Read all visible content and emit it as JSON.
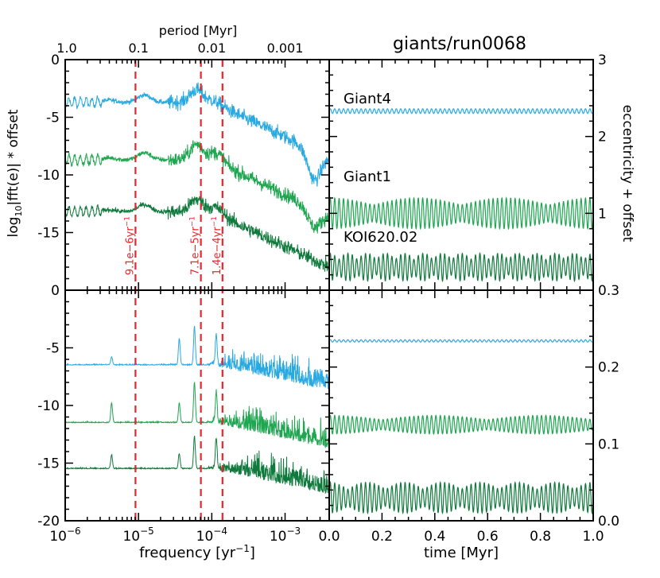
{
  "chart_data": [
    {
      "panel": "top-left",
      "type": "line",
      "xscale": "log",
      "xlim": [
        1e-06,
        0.004
      ],
      "ylim": [
        -20,
        0
      ],
      "ylabel_parts": {
        "pre": "log",
        "sub": "10",
        "post": "|fft(e)| * offset"
      },
      "yticks": [
        0,
        -5,
        -10,
        -15
      ],
      "top_axis": {
        "label": "period [Myr]",
        "ticks": [
          {
            "label": "1.0",
            "freq": 1e-06
          },
          {
            "label": "0.1",
            "freq": 1e-05
          },
          {
            "label": "0.01",
            "freq": 0.0001
          },
          {
            "label": "0.001",
            "freq": 0.001
          }
        ]
      },
      "series": [
        {
          "ref": "giant4",
          "baseline": -3.7,
          "peaks": [
            [
              4e-06,
              -3.5
            ],
            [
              1.2e-05,
              -3.0
            ],
            [
              6.2e-05,
              -2.5
            ],
            [
              0.00012,
              -3.5
            ],
            [
              0.0025,
              -6.5
            ]
          ]
        },
        {
          "ref": "giant1",
          "baseline": -8.7,
          "peaks": [
            [
              4e-06,
              -8.5
            ],
            [
              1.2e-05,
              -8.0
            ],
            [
              6.2e-05,
              -7.2
            ],
            [
              0.00012,
              -7.8
            ],
            [
              0.0025,
              -10.5
            ]
          ]
        },
        {
          "ref": "koi",
          "baseline": -13.2,
          "peaks": [
            [
              4e-06,
              -13.0
            ],
            [
              1.2e-05,
              -12.5
            ],
            [
              6.2e-05,
              -12.0
            ],
            [
              0.00012,
              -12.6
            ]
          ]
        }
      ],
      "vlines": [
        {
          "freq": 9.1e-06,
          "base": "9.1e−6yr",
          "sup": "−1"
        },
        {
          "freq": 7.1e-05,
          "base": "7.1e−5yr",
          "sup": "−1"
        },
        {
          "freq": 0.00014,
          "base": "1.4e−4yr",
          "sup": "−1"
        }
      ]
    },
    {
      "panel": "bottom-left",
      "type": "line",
      "xscale": "log",
      "xlim": [
        1e-06,
        0.004
      ],
      "ylim": [
        -20,
        0
      ],
      "xlabel": "frequency [yr",
      "xlabel_sup": "−1",
      "xlabel_end": "]",
      "xticks": [
        {
          "mant": "10",
          "exp": "−6"
        },
        {
          "mant": "10",
          "exp": "−5"
        },
        {
          "mant": "10",
          "exp": "−4"
        },
        {
          "mant": "10",
          "exp": "−3"
        }
      ],
      "yticks": [
        0,
        -5,
        -10,
        -15,
        -20
      ],
      "series": [
        {
          "ref": "giant4",
          "baseline": -6.5,
          "peaks": [
            [
              4.3e-06,
              -5.8
            ],
            [
              3.6e-05,
              -4.2
            ],
            [
              5.8e-05,
              -3.2
            ],
            [
              0.000115,
              -3.8
            ]
          ]
        },
        {
          "ref": "giant1",
          "baseline": -11.5,
          "peaks": [
            [
              4.3e-06,
              -9.8
            ],
            [
              3.6e-05,
              -9.8
            ],
            [
              5.8e-05,
              -8.0
            ],
            [
              0.000115,
              -8.8
            ]
          ]
        },
        {
          "ref": "koi",
          "baseline": -15.5,
          "peaks": [
            [
              4.3e-06,
              -14.3
            ],
            [
              3.6e-05,
              -14.2
            ],
            [
              5.8e-05,
              -12.7
            ],
            [
              0.000115,
              -12.8
            ]
          ]
        }
      ]
    },
    {
      "panel": "top-right",
      "type": "line",
      "title": "giants/run0068",
      "xlim": [
        0,
        1
      ],
      "ylim": [
        0,
        3
      ],
      "ylabel": "eccentricity + offset",
      "yticks": [
        1,
        2,
        3
      ],
      "series": [
        {
          "name": "Giant4",
          "mean": 2.33,
          "amp": 0.03,
          "freq_per_myr": 60
        },
        {
          "name": "Giant1",
          "mean": 1.0,
          "amp": 0.2,
          "freq_per_myr": 60,
          "beat_per_myr": 3
        },
        {
          "name": "KOI620.02",
          "mean": 0.3,
          "amp": 0.18,
          "freq_per_myr": 60,
          "beat_per_myr": 14
        }
      ]
    },
    {
      "panel": "bottom-right",
      "type": "line",
      "xlim": [
        0,
        1
      ],
      "ylim": [
        0,
        0.3
      ],
      "xlabel": "time [Myr]",
      "xticks": [
        "0.0",
        "0.2",
        "0.4",
        "0.6",
        "0.8",
        "1.0"
      ],
      "yticks": [
        "0.0",
        "0.1",
        "0.2",
        "0.3"
      ],
      "series": [
        {
          "ref": "giant4",
          "mean": 0.234,
          "amp": 0.0015,
          "freq_per_myr": 60
        },
        {
          "ref": "giant1",
          "mean": 0.125,
          "amp": 0.012,
          "freq_per_myr": 60,
          "beat_per_myr": 2.5
        },
        {
          "ref": "koi",
          "mean": 0.03,
          "amp": 0.02,
          "freq_per_myr": 60,
          "beat_per_myr": 7
        }
      ]
    }
  ],
  "colors": {
    "giant4": "#29a9e1",
    "giant1": "#1ea650",
    "koi": "#0f7a3c",
    "vline": "#e8262c",
    "axes": "#000000"
  }
}
